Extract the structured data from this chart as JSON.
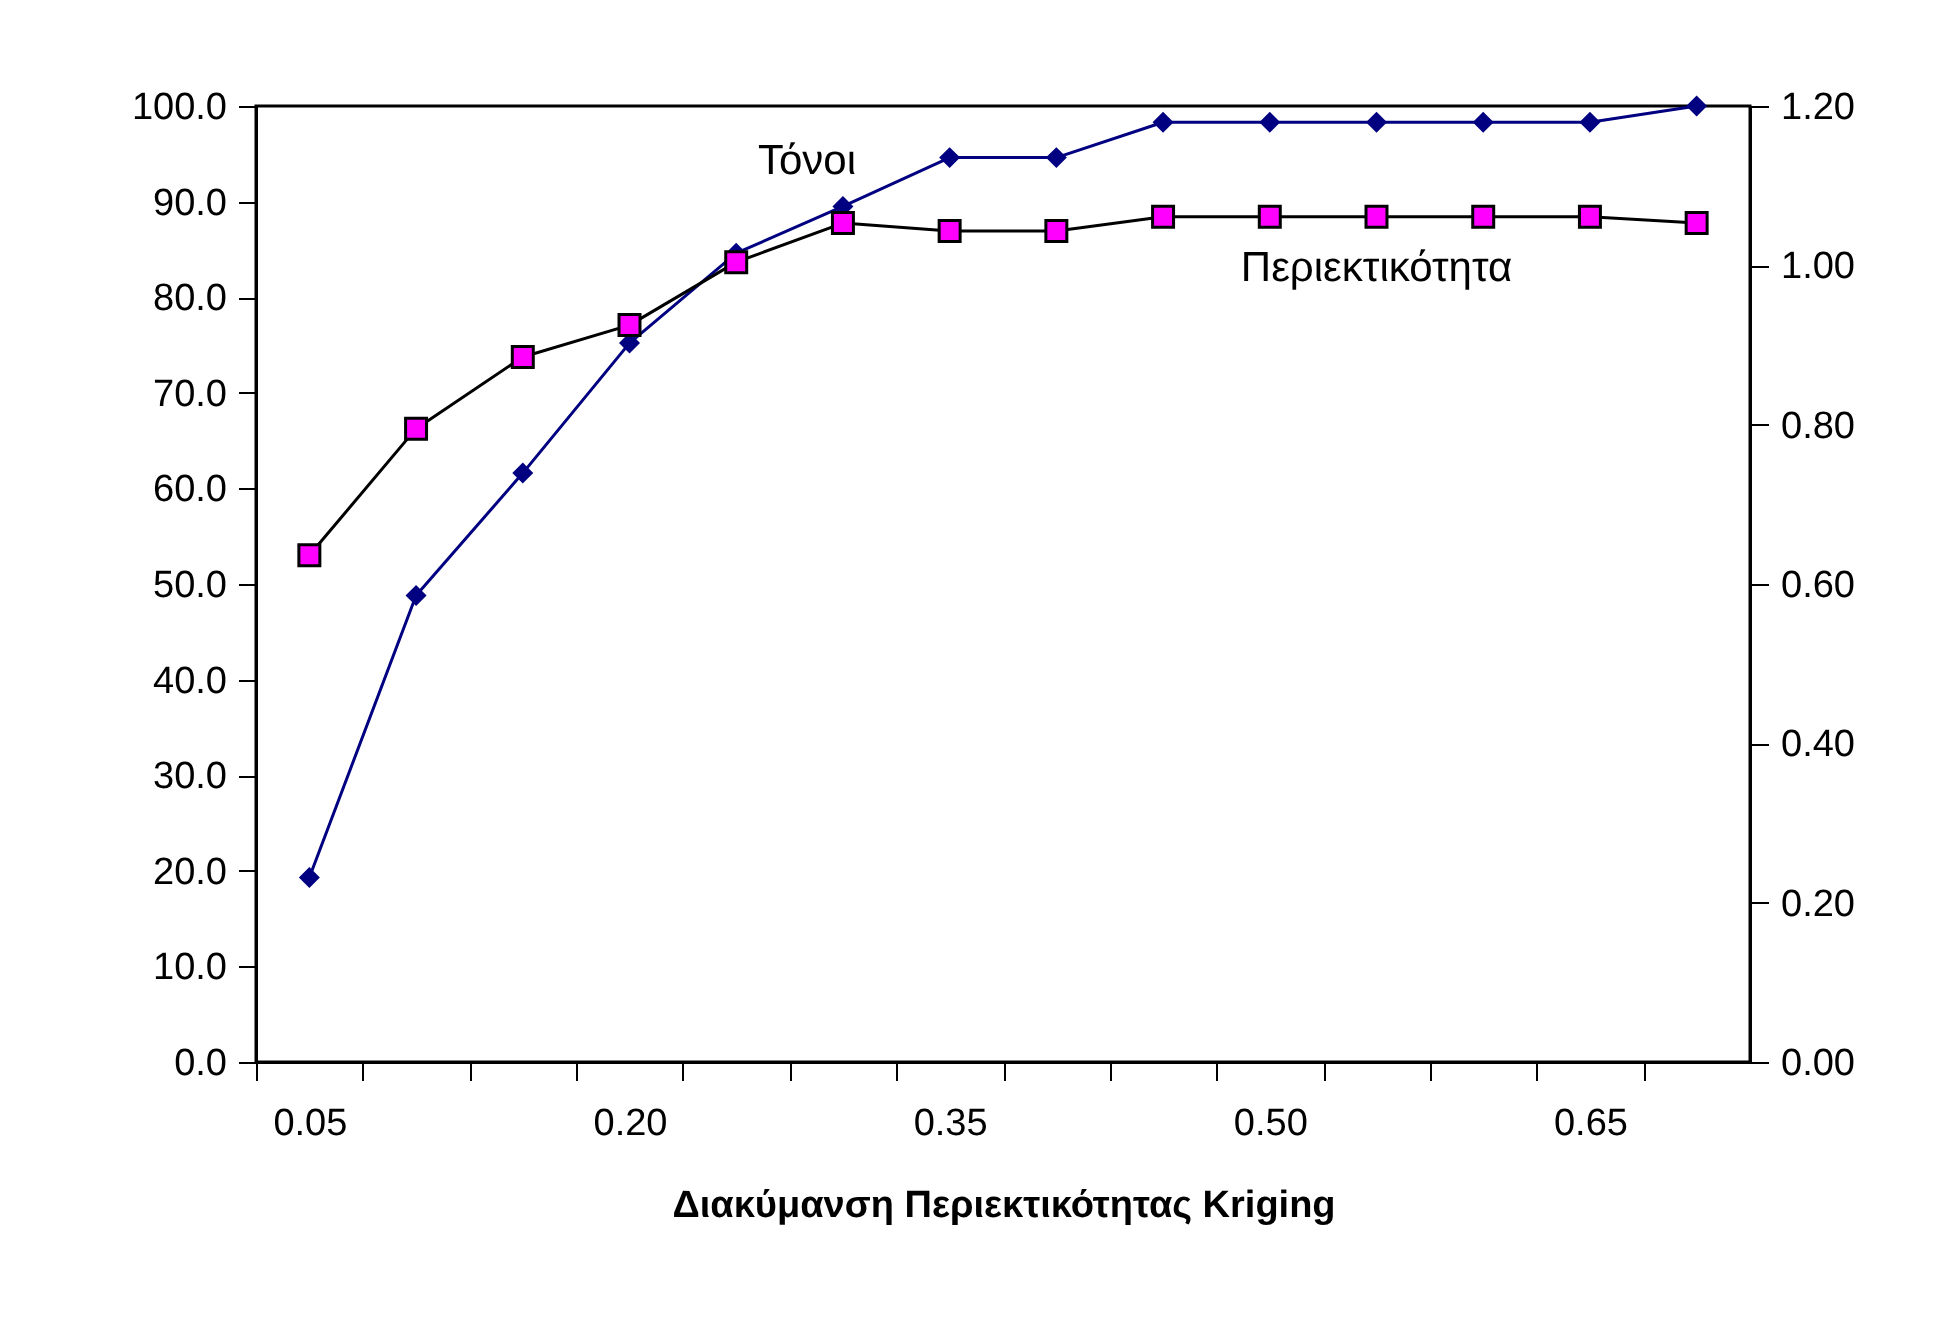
{
  "chart_data": {
    "type": "line",
    "xlabel": "Διακύμανση Περιεκτικότητας Kriging",
    "categories": [
      "0.05",
      null,
      null,
      "0.20",
      null,
      null,
      "0.35",
      null,
      null,
      "0.50",
      null,
      null,
      "0.65",
      null
    ],
    "series": [
      {
        "name": "Τόνοι",
        "color": "#000080",
        "marker": "diamond",
        "values": [
          19.3,
          48.8,
          61.6,
          75.2,
          84.6,
          89.5,
          94.6,
          94.6,
          98.3,
          98.3,
          98.3,
          98.3,
          98.3,
          100.0
        ]
      },
      {
        "name": "Περιεκτικότητα",
        "color": "#ff00ff",
        "marker": "square",
        "axis": "y2",
        "values": [
          0.636,
          0.795,
          0.885,
          0.925,
          1.004,
          1.053,
          1.043,
          1.043,
          1.061,
          1.061,
          1.061,
          1.061,
          1.061,
          1.053
        ]
      }
    ],
    "ylim": [
      0,
      100
    ],
    "yticks": [
      {
        "value": 0,
        "label": "0.0"
      },
      {
        "value": 10,
        "label": "10.0"
      },
      {
        "value": 20,
        "label": "20.0"
      },
      {
        "value": 30,
        "label": "30.0"
      },
      {
        "value": 40,
        "label": "40.0"
      },
      {
        "value": 50,
        "label": "50.0"
      },
      {
        "value": 60,
        "label": "60.0"
      },
      {
        "value": 70,
        "label": "70.0"
      },
      {
        "value": 80,
        "label": "80.0"
      },
      {
        "value": 90,
        "label": "90.0"
      },
      {
        "value": 100,
        "label": "100.0"
      }
    ],
    "y2lim": [
      0,
      1.2
    ],
    "y2ticks": [
      {
        "value": 0,
        "label": "0.00"
      },
      {
        "value": 0.2,
        "label": "0.20"
      },
      {
        "value": 0.4,
        "label": "0.40"
      },
      {
        "value": 0.6,
        "label": "0.60"
      },
      {
        "value": 0.8,
        "label": "0.80"
      },
      {
        "value": 1,
        "label": "1.00"
      },
      {
        "value": 1.2,
        "label": "1.20"
      }
    ],
    "grid": false,
    "line_style": "solid"
  }
}
